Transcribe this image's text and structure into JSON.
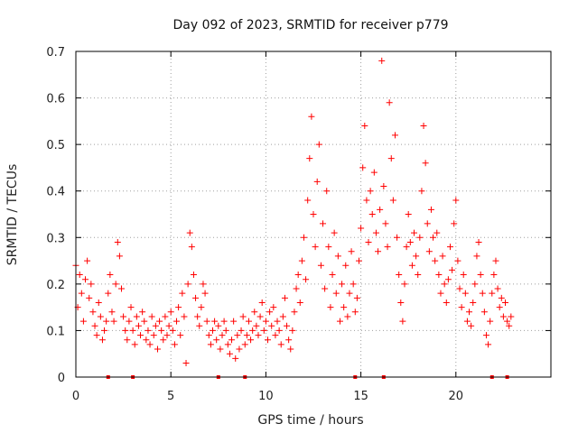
{
  "colors": {
    "series": "#ff0000",
    "frame": "#000000",
    "grid": "#a0a0a0"
  },
  "chart_data": {
    "type": "scatter",
    "title": "Day 092 of 2023, SRMTID for receiver p779",
    "xlabel": "GPS time / hours",
    "ylabel": "SRMTID / TECUs",
    "xlim": [
      0,
      25
    ],
    "ylim": [
      0,
      0.7
    ],
    "grid": true,
    "marker": "+",
    "x_ticks": [
      {
        "value": 0,
        "label": "0"
      },
      {
        "value": 5,
        "label": "5"
      },
      {
        "value": 10,
        "label": "10"
      },
      {
        "value": 15,
        "label": "15"
      },
      {
        "value": 20,
        "label": "20"
      }
    ],
    "y_ticks": [
      {
        "value": 0,
        "label": "0"
      },
      {
        "value": 0.1,
        "label": "0.1"
      },
      {
        "value": 0.2,
        "label": "0.2"
      },
      {
        "value": 0.3,
        "label": "0.3"
      },
      {
        "value": 0.4,
        "label": "0.4"
      },
      {
        "value": 0.5,
        "label": "0.5"
      },
      {
        "value": 0.6,
        "label": "0.6"
      },
      {
        "value": 0.7,
        "label": "0.7"
      }
    ],
    "series": [
      {
        "name": "SRMTID",
        "points": [
          [
            0.0,
            0.24
          ],
          [
            0.1,
            0.15
          ],
          [
            0.2,
            0.22
          ],
          [
            0.3,
            0.18
          ],
          [
            0.4,
            0.12
          ],
          [
            0.5,
            0.21
          ],
          [
            0.6,
            0.25
          ],
          [
            0.7,
            0.17
          ],
          [
            0.8,
            0.2
          ],
          [
            0.9,
            0.14
          ],
          [
            1.0,
            0.11
          ],
          [
            1.1,
            0.09
          ],
          [
            1.2,
            0.16
          ],
          [
            1.3,
            0.13
          ],
          [
            1.4,
            0.08
          ],
          [
            1.5,
            0.1
          ],
          [
            1.6,
            0.12
          ],
          [
            1.7,
            0.18
          ],
          [
            1.8,
            0.22
          ],
          [
            1.9,
            0.14
          ],
          [
            2.0,
            0.12
          ],
          [
            2.1,
            0.2
          ],
          [
            2.2,
            0.29
          ],
          [
            2.3,
            0.26
          ],
          [
            2.4,
            0.19
          ],
          [
            2.5,
            0.13
          ],
          [
            2.6,
            0.1
          ],
          [
            2.7,
            0.08
          ],
          [
            2.8,
            0.12
          ],
          [
            2.9,
            0.15
          ],
          [
            3.0,
            0.1
          ],
          [
            3.1,
            0.07
          ],
          [
            3.2,
            0.13
          ],
          [
            3.3,
            0.11
          ],
          [
            3.4,
            0.09
          ],
          [
            3.5,
            0.14
          ],
          [
            3.6,
            0.12
          ],
          [
            3.7,
            0.08
          ],
          [
            3.8,
            0.1
          ],
          [
            3.9,
            0.07
          ],
          [
            4.0,
            0.13
          ],
          [
            4.1,
            0.09
          ],
          [
            4.2,
            0.11
          ],
          [
            4.3,
            0.06
          ],
          [
            4.4,
            0.12
          ],
          [
            4.5,
            0.1
          ],
          [
            4.6,
            0.08
          ],
          [
            4.7,
            0.13
          ],
          [
            4.8,
            0.09
          ],
          [
            4.9,
            0.11
          ],
          [
            5.0,
            0.14
          ],
          [
            5.1,
            0.1
          ],
          [
            5.2,
            0.07
          ],
          [
            5.3,
            0.12
          ],
          [
            5.4,
            0.15
          ],
          [
            5.5,
            0.09
          ],
          [
            5.6,
            0.18
          ],
          [
            5.7,
            0.13
          ],
          [
            5.8,
            0.03
          ],
          [
            5.9,
            0.2
          ],
          [
            6.0,
            0.31
          ],
          [
            6.1,
            0.28
          ],
          [
            6.2,
            0.22
          ],
          [
            6.3,
            0.17
          ],
          [
            6.4,
            0.13
          ],
          [
            6.5,
            0.11
          ],
          [
            6.6,
            0.15
          ],
          [
            6.7,
            0.2
          ],
          [
            6.8,
            0.18
          ],
          [
            6.9,
            0.12
          ],
          [
            7.0,
            0.09
          ],
          [
            7.1,
            0.07
          ],
          [
            7.2,
            0.1
          ],
          [
            7.3,
            0.12
          ],
          [
            7.4,
            0.08
          ],
          [
            7.5,
            0.11
          ],
          [
            7.6,
            0.06
          ],
          [
            7.7,
            0.09
          ],
          [
            7.8,
            0.12
          ],
          [
            7.9,
            0.1
          ],
          [
            8.0,
            0.07
          ],
          [
            8.1,
            0.05
          ],
          [
            8.2,
            0.08
          ],
          [
            8.3,
            0.12
          ],
          [
            8.4,
            0.04
          ],
          [
            8.5,
            0.09
          ],
          [
            8.6,
            0.06
          ],
          [
            8.7,
            0.1
          ],
          [
            8.8,
            0.13
          ],
          [
            8.9,
            0.07
          ],
          [
            9.0,
            0.09
          ],
          [
            9.1,
            0.12
          ],
          [
            9.2,
            0.08
          ],
          [
            9.3,
            0.1
          ],
          [
            9.4,
            0.14
          ],
          [
            9.5,
            0.11
          ],
          [
            9.6,
            0.09
          ],
          [
            9.7,
            0.13
          ],
          [
            9.8,
            0.16
          ],
          [
            9.9,
            0.1
          ],
          [
            10.0,
            0.12
          ],
          [
            10.1,
            0.08
          ],
          [
            10.2,
            0.14
          ],
          [
            10.3,
            0.11
          ],
          [
            10.4,
            0.15
          ],
          [
            10.5,
            0.09
          ],
          [
            10.6,
            0.12
          ],
          [
            10.7,
            0.1
          ],
          [
            10.8,
            0.07
          ],
          [
            10.9,
            0.13
          ],
          [
            11.0,
            0.17
          ],
          [
            11.1,
            0.11
          ],
          [
            11.2,
            0.08
          ],
          [
            11.3,
            0.06
          ],
          [
            11.4,
            0.1
          ],
          [
            11.5,
            0.14
          ],
          [
            11.6,
            0.19
          ],
          [
            11.7,
            0.22
          ],
          [
            11.8,
            0.16
          ],
          [
            11.9,
            0.25
          ],
          [
            12.0,
            0.3
          ],
          [
            12.1,
            0.21
          ],
          [
            12.2,
            0.38
          ],
          [
            12.3,
            0.47
          ],
          [
            12.4,
            0.56
          ],
          [
            12.5,
            0.35
          ],
          [
            12.6,
            0.28
          ],
          [
            12.7,
            0.42
          ],
          [
            12.8,
            0.5
          ],
          [
            12.9,
            0.24
          ],
          [
            13.0,
            0.33
          ],
          [
            13.1,
            0.19
          ],
          [
            13.2,
            0.4
          ],
          [
            13.3,
            0.28
          ],
          [
            13.4,
            0.15
          ],
          [
            13.5,
            0.22
          ],
          [
            13.6,
            0.31
          ],
          [
            13.7,
            0.18
          ],
          [
            13.8,
            0.26
          ],
          [
            13.9,
            0.12
          ],
          [
            14.0,
            0.2
          ],
          [
            14.1,
            0.15
          ],
          [
            14.2,
            0.24
          ],
          [
            14.3,
            0.13
          ],
          [
            14.4,
            0.18
          ],
          [
            14.5,
            0.27
          ],
          [
            14.6,
            0.2
          ],
          [
            14.7,
            0.14
          ],
          [
            14.8,
            0.17
          ],
          [
            14.9,
            0.25
          ],
          [
            15.0,
            0.32
          ],
          [
            15.1,
            0.45
          ],
          [
            15.2,
            0.54
          ],
          [
            15.3,
            0.38
          ],
          [
            15.4,
            0.29
          ],
          [
            15.5,
            0.4
          ],
          [
            15.6,
            0.35
          ],
          [
            15.7,
            0.44
          ],
          [
            15.8,
            0.31
          ],
          [
            15.9,
            0.27
          ],
          [
            16.0,
            0.36
          ],
          [
            16.1,
            0.68
          ],
          [
            16.2,
            0.41
          ],
          [
            16.3,
            0.33
          ],
          [
            16.4,
            0.28
          ],
          [
            16.5,
            0.59
          ],
          [
            16.6,
            0.47
          ],
          [
            16.7,
            0.38
          ],
          [
            16.8,
            0.52
          ],
          [
            16.9,
            0.3
          ],
          [
            17.0,
            0.22
          ],
          [
            17.1,
            0.16
          ],
          [
            17.2,
            0.12
          ],
          [
            17.3,
            0.2
          ],
          [
            17.4,
            0.28
          ],
          [
            17.5,
            0.35
          ],
          [
            17.6,
            0.29
          ],
          [
            17.7,
            0.24
          ],
          [
            17.8,
            0.31
          ],
          [
            17.9,
            0.26
          ],
          [
            18.0,
            0.22
          ],
          [
            18.1,
            0.3
          ],
          [
            18.2,
            0.4
          ],
          [
            18.3,
            0.54
          ],
          [
            18.4,
            0.46
          ],
          [
            18.5,
            0.33
          ],
          [
            18.6,
            0.27
          ],
          [
            18.7,
            0.36
          ],
          [
            18.8,
            0.3
          ],
          [
            18.9,
            0.25
          ],
          [
            19.0,
            0.31
          ],
          [
            19.1,
            0.22
          ],
          [
            19.2,
            0.18
          ],
          [
            19.3,
            0.26
          ],
          [
            19.4,
            0.2
          ],
          [
            19.5,
            0.16
          ],
          [
            19.6,
            0.21
          ],
          [
            19.7,
            0.28
          ],
          [
            19.8,
            0.23
          ],
          [
            19.9,
            0.33
          ],
          [
            20.0,
            0.38
          ],
          [
            20.1,
            0.25
          ],
          [
            20.2,
            0.19
          ],
          [
            20.3,
            0.15
          ],
          [
            20.4,
            0.22
          ],
          [
            20.5,
            0.18
          ],
          [
            20.6,
            0.12
          ],
          [
            20.7,
            0.14
          ],
          [
            20.8,
            0.11
          ],
          [
            20.9,
            0.16
          ],
          [
            21.0,
            0.2
          ],
          [
            21.1,
            0.26
          ],
          [
            21.2,
            0.29
          ],
          [
            21.3,
            0.22
          ],
          [
            21.4,
            0.18
          ],
          [
            21.5,
            0.14
          ],
          [
            21.6,
            0.09
          ],
          [
            21.7,
            0.07
          ],
          [
            21.8,
            0.12
          ],
          [
            21.9,
            0.18
          ],
          [
            22.0,
            0.22
          ],
          [
            22.1,
            0.25
          ],
          [
            22.2,
            0.19
          ],
          [
            22.3,
            0.15
          ],
          [
            22.4,
            0.17
          ],
          [
            22.5,
            0.13
          ],
          [
            22.6,
            0.16
          ],
          [
            22.7,
            0.12
          ],
          [
            22.8,
            0.11
          ],
          [
            22.9,
            0.13
          ]
        ]
      }
    ],
    "baseline_markers": [
      1.7,
      3.0,
      7.5,
      8.9,
      14.7,
      16.2,
      21.9,
      22.7
    ]
  }
}
